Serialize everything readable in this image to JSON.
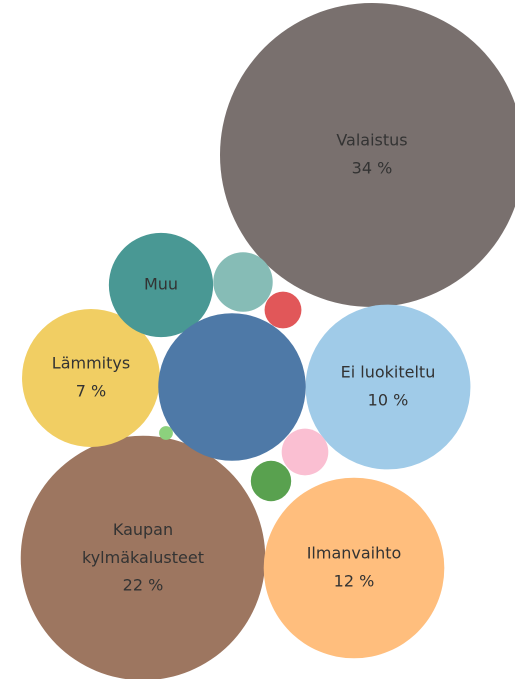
{
  "chart_data": {
    "type": "bubble",
    "categories": [
      "Valaistus",
      "Kaupan kylmäkalusteet",
      "Ilmanvaihto",
      "Ei luokiteltu",
      "Lämmitys",
      "Muu",
      null,
      null,
      null,
      null,
      null,
      null
    ],
    "values": [
      34,
      22,
      12,
      10,
      7,
      4,
      8,
      1.3,
      0.5,
      0.8,
      0.6,
      0.07
    ],
    "value_labels": [
      "34 %",
      "22 %",
      "12 %",
      "10 %",
      "7 %",
      null,
      null,
      null,
      null,
      null,
      null,
      null
    ],
    "colors": [
      "#79706e",
      "#9d7660",
      "#ffbe7d",
      "#a0cbe8",
      "#f1ce63",
      "#499894",
      "#4e79a7",
      "#86bcb6",
      "#e15759",
      "#fabfd2",
      "#59a14f",
      "#8cd17d"
    ]
  }
}
